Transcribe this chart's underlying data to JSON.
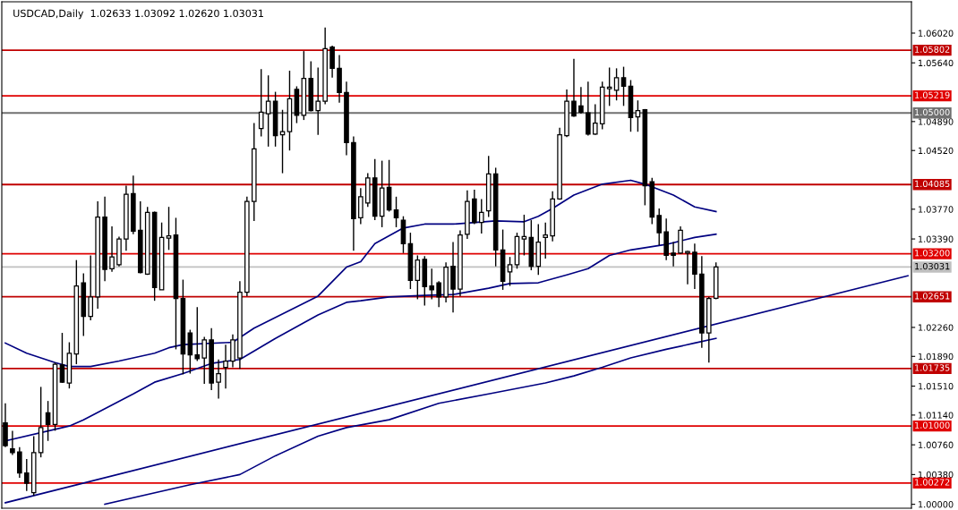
{
  "chart_data": {
    "type": "candlestick",
    "title": "USDCAD,Daily  1.02633 1.03092 1.02620 1.03031",
    "categories": [
      null,
      null,
      null,
      null,
      null,
      null,
      null,
      null,
      null,
      null,
      null,
      null,
      null,
      null,
      null,
      null,
      null,
      null,
      null,
      null,
      null,
      null,
      null,
      null,
      null,
      null,
      null,
      null,
      null,
      null,
      null,
      null,
      null,
      null,
      null,
      null,
      null,
      null,
      null,
      null,
      null,
      null,
      null,
      null,
      null,
      null,
      null,
      null,
      null,
      null,
      null,
      null,
      null,
      null,
      null,
      null,
      null,
      null,
      null,
      null,
      null,
      null,
      null,
      null,
      null,
      null,
      null,
      null,
      null,
      null,
      null,
      null,
      null,
      null,
      null,
      null,
      null,
      null,
      null,
      null,
      null,
      null,
      null,
      null,
      null,
      null,
      null,
      null,
      null,
      null,
      null,
      null,
      null,
      null,
      null,
      null,
      null,
      null,
      null,
      null,
      null,
      null,
      null,
      null,
      null,
      null,
      null,
      null,
      null,
      null,
      null,
      null,
      null,
      null,
      null,
      null,
      null,
      null,
      null,
      null,
      null,
      null,
      null,
      null,
      null,
      null,
      null,
      null
    ],
    "ohlc": [
      [
        1.0104,
        1.0129,
        1.0073,
        1.0075
      ],
      [
        1.0071,
        1.0094,
        1.0063,
        1.0066
      ],
      [
        1.0067,
        1.0073,
        1.0034,
        1.004
      ],
      [
        1.004,
        1.0058,
        1.0017,
        1.0027
      ],
      [
        1.0015,
        1.0087,
        1.0011,
        1.0066
      ],
      [
        1.0066,
        1.015,
        1.006,
        1.0098
      ],
      [
        1.0117,
        1.0132,
        1.0081,
        1.0102
      ],
      [
        1.0102,
        1.0181,
        1.0094,
        1.0179
      ],
      [
        1.0178,
        1.0219,
        1.0155,
        1.0156
      ],
      [
        1.0155,
        1.0207,
        1.0148,
        1.0193
      ],
      [
        1.0192,
        1.0312,
        1.0179,
        1.0279
      ],
      [
        1.0283,
        1.0295,
        1.0215,
        1.024
      ],
      [
        1.024,
        1.0318,
        1.0235,
        1.0265
      ],
      [
        1.0265,
        1.0387,
        1.025,
        1.0367
      ],
      [
        1.0367,
        1.0393,
        1.0285,
        1.03
      ],
      [
        1.0301,
        1.0355,
        1.0297,
        1.0316
      ],
      [
        1.0306,
        1.0342,
        1.0304,
        1.0339
      ],
      [
        1.0339,
        1.0407,
        1.0324,
        1.0396
      ],
      [
        1.0397,
        1.042,
        1.0345,
        1.0349
      ],
      [
        1.035,
        1.0387,
        1.0295,
        1.0296
      ],
      [
        1.0294,
        1.038,
        1.0293,
        1.0373
      ],
      [
        1.0373,
        1.0374,
        1.026,
        1.0277
      ],
      [
        1.0274,
        1.036,
        1.0274,
        1.0341
      ],
      [
        1.034,
        1.038,
        1.0325,
        1.0343
      ],
      [
        1.0344,
        1.0366,
        1.0198,
        1.0263
      ],
      [
        1.0263,
        1.0287,
        1.0166,
        1.0192
      ],
      [
        1.0219,
        1.0223,
        1.0167,
        1.0191
      ],
      [
        1.0191,
        1.0252,
        1.0183,
        1.0186
      ],
      [
        1.0187,
        1.0214,
        1.0154,
        1.021
      ],
      [
        1.021,
        1.0225,
        1.0146,
        1.0155
      ],
      [
        1.0156,
        1.0185,
        1.0135,
        1.0167
      ],
      [
        1.0175,
        1.0204,
        1.0148,
        1.0183
      ],
      [
        1.0183,
        1.0217,
        1.0175,
        1.021
      ],
      [
        1.0187,
        1.0285,
        1.0173,
        1.0271
      ],
      [
        1.0271,
        1.0393,
        1.0266,
        1.0387
      ],
      [
        1.0387,
        1.0487,
        1.0362,
        1.0454
      ],
      [
        1.048,
        1.0556,
        1.047,
        1.0501
      ],
      [
        1.0499,
        1.0548,
        1.0457,
        1.0515
      ],
      [
        1.0515,
        1.0527,
        1.0457,
        1.0471
      ],
      [
        1.0472,
        1.0504,
        1.0423,
        1.0476
      ],
      [
        1.0476,
        1.0554,
        1.0452,
        1.0518
      ],
      [
        1.053,
        1.0534,
        1.0487,
        1.0497
      ],
      [
        1.0497,
        1.0579,
        1.0491,
        1.0544
      ],
      [
        1.0544,
        1.0566,
        1.0502,
        1.0503
      ],
      [
        1.0503,
        1.0558,
        1.0472,
        1.0515
      ],
      [
        1.0515,
        1.0609,
        1.0511,
        1.0582
      ],
      [
        1.0584,
        1.0586,
        1.0545,
        1.0557
      ],
      [
        1.0557,
        1.0574,
        1.0513,
        1.0526
      ],
      [
        1.0526,
        1.054,
        1.0446,
        1.0462
      ],
      [
        1.0462,
        1.047,
        1.0324,
        1.0365
      ],
      [
        1.0366,
        1.0404,
        1.0358,
        1.0393
      ],
      [
        1.0385,
        1.0423,
        1.038,
        1.0417
      ],
      [
        1.0417,
        1.0441,
        1.0363,
        1.0368
      ],
      [
        1.0368,
        1.0439,
        1.0354,
        1.0404
      ],
      [
        1.0405,
        1.044,
        1.0374,
        1.0376
      ],
      [
        1.0376,
        1.0393,
        1.0354,
        1.0366
      ],
      [
        1.0363,
        1.0368,
        1.0321,
        1.0333
      ],
      [
        1.0333,
        1.0347,
        1.0275,
        1.0286
      ],
      [
        1.0286,
        1.0318,
        1.0262,
        1.0312
      ],
      [
        1.0313,
        1.0317,
        1.0254,
        1.0278
      ],
      [
        1.0279,
        1.0301,
        1.0262,
        1.0274
      ],
      [
        1.0283,
        1.0285,
        1.0252,
        1.0265
      ],
      [
        1.0265,
        1.0309,
        1.0258,
        1.0303
      ],
      [
        1.0304,
        1.0335,
        1.0245,
        1.0275
      ],
      [
        1.0275,
        1.035,
        1.0266,
        1.0344
      ],
      [
        1.0345,
        1.0401,
        1.0339,
        1.0387
      ],
      [
        1.039,
        1.0402,
        1.0358,
        1.036
      ],
      [
        1.036,
        1.039,
        1.0346,
        1.0373
      ],
      [
        1.0375,
        1.0445,
        1.0367,
        1.0422
      ],
      [
        1.0422,
        1.043,
        1.0304,
        1.0325
      ],
      [
        1.0325,
        1.0351,
        1.0274,
        1.0285
      ],
      [
        1.0297,
        1.0316,
        1.0279,
        1.0306
      ],
      [
        1.0306,
        1.0347,
        1.0301,
        1.0342
      ],
      [
        1.0339,
        1.037,
        1.0318,
        1.0342
      ],
      [
        1.0341,
        1.0363,
        1.0299,
        1.0304
      ],
      [
        1.0304,
        1.0358,
        1.0293,
        1.0335
      ],
      [
        1.0341,
        1.036,
        1.0314,
        1.0344
      ],
      [
        1.0343,
        1.04,
        1.0336,
        1.039
      ],
      [
        1.039,
        1.0481,
        1.0389,
        1.0472
      ],
      [
        1.0471,
        1.053,
        1.0469,
        1.0515
      ],
      [
        1.0515,
        1.0569,
        1.0495,
        1.0496
      ],
      [
        1.0509,
        1.0533,
        1.0499,
        1.0501
      ],
      [
        1.05,
        1.054,
        1.0471,
        1.0473
      ],
      [
        1.0473,
        1.0511,
        1.0472,
        1.0487
      ],
      [
        1.0486,
        1.054,
        1.0479,
        1.0533
      ],
      [
        1.0531,
        1.0558,
        1.0509,
        1.0533
      ],
      [
        1.0529,
        1.0557,
        1.0516,
        1.0545
      ],
      [
        1.0545,
        1.0559,
        1.0509,
        1.0534
      ],
      [
        1.0534,
        1.0542,
        1.0476,
        1.0494
      ],
      [
        1.0495,
        1.0516,
        1.0476,
        1.0503
      ],
      [
        1.0504,
        1.0505,
        1.0382,
        1.0407
      ],
      [
        1.0412,
        1.0417,
        1.0358,
        1.0367
      ],
      [
        1.0369,
        1.0378,
        1.0331,
        1.0347
      ],
      [
        1.0348,
        1.0365,
        1.0312,
        1.0318
      ],
      [
        1.0321,
        1.0335,
        1.0304,
        1.0318
      ],
      [
        1.0321,
        1.0355,
        1.032,
        1.035
      ],
      [
        1.0321,
        1.0324,
        1.0281,
        1.0323
      ],
      [
        1.0322,
        1.0333,
        1.0275,
        1.0294
      ],
      [
        1.0294,
        1.0317,
        1.02,
        1.0219
      ],
      [
        1.0219,
        1.0265,
        1.0181,
        1.0263
      ],
      [
        1.02633,
        1.03092,
        1.0262,
        1.03031
      ],
      null,
      null,
      null,
      null,
      null,
      null,
      null,
      null,
      null,
      null,
      null,
      null,
      null,
      null,
      null,
      null,
      null,
      null,
      null,
      null,
      null,
      null,
      null,
      null,
      null,
      null,
      null
    ],
    "series": [
      {
        "type": "line",
        "color": "#000080",
        "values": [
          1.0206,
          null,
          null,
          1.0193,
          null,
          null,
          null,
          1.0181,
          null,
          1.0176,
          null,
          null,
          1.0176,
          null,
          null,
          null,
          1.0183,
          null,
          null,
          null,
          null,
          1.0193,
          null,
          1.02,
          null,
          1.0204,
          null,
          null,
          null,
          null,
          null,
          null,
          1.0207,
          null,
          null,
          1.0225,
          null,
          null,
          null,
          null,
          null,
          null,
          null,
          null,
          1.0266,
          null,
          null,
          null,
          1.0303,
          null,
          1.031,
          null,
          1.0333,
          null,
          null,
          null,
          1.0353,
          null,
          null,
          1.0358,
          null,
          null,
          null,
          1.0358,
          null,
          null,
          null,
          null,
          null,
          1.0362,
          null,
          null,
          null,
          1.0361,
          null,
          1.0368,
          null,
          1.0378,
          null,
          null,
          1.0395,
          null,
          null,
          null,
          1.0409,
          null,
          null,
          null,
          1.0414,
          null,
          1.0409,
          null,
          null,
          null,
          1.0395,
          null,
          null,
          1.038,
          null,
          null,
          1.0374,
          null,
          null,
          null,
          null,
          null,
          null,
          null,
          null,
          null,
          null,
          null,
          null,
          null,
          null,
          null,
          null,
          null,
          null,
          null,
          null,
          null,
          null,
          null,
          null,
          null,
          null,
          null
        ]
      },
      {
        "type": "line",
        "color": "#000080",
        "values": [
          1.0081,
          null,
          null,
          null,
          null,
          null,
          null,
          null,
          null,
          1.01,
          null,
          1.0108,
          null,
          null,
          null,
          null,
          null,
          null,
          1.0141,
          null,
          null,
          1.0156,
          null,
          null,
          null,
          1.0167,
          null,
          null,
          null,
          1.018,
          null,
          null,
          null,
          1.0185,
          null,
          null,
          null,
          null,
          1.0212,
          null,
          null,
          null,
          null,
          null,
          1.0242,
          null,
          null,
          null,
          1.0258,
          null,
          1.026,
          null,
          null,
          null,
          1.0265,
          null,
          null,
          null,
          null,
          1.0267,
          null,
          null,
          null,
          1.0268,
          null,
          null,
          null,
          null,
          1.0276,
          null,
          null,
          1.0282,
          null,
          null,
          null,
          1.0283,
          null,
          null,
          null,
          1.0293,
          null,
          null,
          1.0301,
          null,
          null,
          1.0318,
          null,
          null,
          1.0325,
          null,
          null,
          null,
          null,
          1.0332,
          null,
          null,
          null,
          1.0341,
          null,
          null,
          1.0345,
          null,
          null,
          null,
          null,
          null,
          null,
          null,
          null,
          null,
          null,
          null,
          null,
          null,
          null,
          null,
          null,
          null,
          null,
          null,
          null,
          null,
          null,
          null,
          null,
          null,
          null,
          null
        ]
      },
      {
        "type": "line",
        "color": "#000080",
        "values": [
          null,
          null,
          null,
          null,
          null,
          null,
          null,
          null,
          null,
          null,
          null,
          null,
          null,
          null,
          1.0,
          null,
          null,
          null,
          null,
          null,
          null,
          null,
          null,
          null,
          null,
          null,
          1.0025,
          null,
          null,
          null,
          null,
          null,
          null,
          1.0038,
          null,
          null,
          null,
          null,
          1.0062,
          null,
          null,
          null,
          null,
          null,
          1.0087,
          null,
          null,
          null,
          1.0098,
          null,
          null,
          null,
          null,
          null,
          1.0108,
          null,
          null,
          null,
          null,
          null,
          null,
          1.0129,
          null,
          null,
          null,
          null,
          null,
          null,
          1.0141,
          null,
          null,
          null,
          null,
          null,
          null,
          null,
          1.0155,
          null,
          null,
          null,
          1.0164,
          null,
          null,
          null,
          1.0175,
          null,
          null,
          null,
          1.0187,
          null,
          null,
          null,
          null,
          1.0198,
          null,
          null,
          null,
          1.0206,
          null,
          null,
          1.0212,
          null,
          null,
          null,
          null,
          null,
          null,
          null,
          null,
          null,
          null,
          null,
          null,
          null,
          null,
          null,
          null,
          null,
          null,
          null,
          null,
          null,
          null,
          null,
          null,
          null,
          null,
          null
        ]
      },
      {
        "type": "line",
        "color": "#000080",
        "values": [
          1.0002,
          null,
          null,
          null,
          null,
          null,
          null,
          null,
          null,
          null,
          null,
          null,
          null,
          null,
          null,
          null,
          null,
          null,
          null,
          null,
          null,
          null,
          null,
          null,
          null,
          null,
          null,
          null,
          null,
          null,
          null,
          null,
          null,
          null,
          null,
          null,
          null,
          null,
          null,
          null,
          null,
          null,
          null,
          null,
          null,
          null,
          null,
          null,
          null,
          null,
          null,
          null,
          null,
          null,
          null,
          null,
          null,
          null,
          null,
          null,
          null,
          null,
          null,
          null,
          null,
          null,
          null,
          null,
          null,
          null,
          null,
          null,
          null,
          null,
          null,
          null,
          null,
          null,
          null,
          null,
          null,
          null,
          null,
          null,
          null,
          null,
          null,
          null,
          null,
          null,
          null,
          null,
          null,
          null,
          null,
          null,
          null,
          null,
          null,
          null,
          null,
          null,
          null,
          null,
          null,
          null,
          null,
          null,
          null,
          null,
          null,
          null,
          null,
          null,
          null,
          null,
          null,
          null,
          null,
          null,
          null,
          null,
          null,
          null,
          null,
          null,
          null,
          1.0292
        ]
      }
    ],
    "ylim": [
      0.9995,
      1.0642
    ],
    "yticks": [
      {
        "value": 1.0602,
        "label": "1.06020"
      },
      {
        "value": 1.0564,
        "label": "1.05640"
      },
      {
        "value": 1.0489,
        "label": "1.04890"
      },
      {
        "value": 1.0452,
        "label": "1.04520"
      },
      {
        "value": 1.0377,
        "label": "1.03770"
      },
      {
        "value": 1.0339,
        "label": "1.03390"
      },
      {
        "value": 1.0226,
        "label": "1.02260"
      },
      {
        "value": 1.0189,
        "label": "1.01890"
      },
      {
        "value": 1.0151,
        "label": "1.01510"
      },
      {
        "value": 1.0114,
        "label": "1.01140"
      },
      {
        "value": 1.0076,
        "label": "1.00760"
      },
      {
        "value": 1.0038,
        "label": "1.00380"
      },
      {
        "value": 1.0,
        "label": "1.00000"
      }
    ],
    "ref_lines": [
      {
        "axis": "y",
        "value": 1.05802,
        "label": "1.05802",
        "color": "#c00000"
      },
      {
        "axis": "y",
        "value": 1.05219,
        "label": "1.05219",
        "color": "#e00000"
      },
      {
        "axis": "y",
        "value": 1.05,
        "label": "1.05000",
        "color": "#707070"
      },
      {
        "axis": "y",
        "value": 1.04085,
        "label": "1.04085",
        "color": "#c00000"
      },
      {
        "axis": "y",
        "value": 1.032,
        "label": "1.03200",
        "color": "#e00000"
      },
      {
        "axis": "y",
        "value": 1.03031,
        "label": "1.03031",
        "color": "#c0c0c0"
      },
      {
        "axis": "y",
        "value": 1.02651,
        "label": "1.02651",
        "color": "#c00000"
      },
      {
        "axis": "y",
        "value": 1.01735,
        "label": "1.01735",
        "color": "#c00000"
      },
      {
        "axis": "y",
        "value": 1.01,
        "label": "1.01000",
        "color": "#e00000"
      },
      {
        "axis": "y",
        "value": 1.00272,
        "label": "1.00272",
        "color": "#e00000"
      }
    ],
    "tick_labels": "y",
    "grid": false
  }
}
